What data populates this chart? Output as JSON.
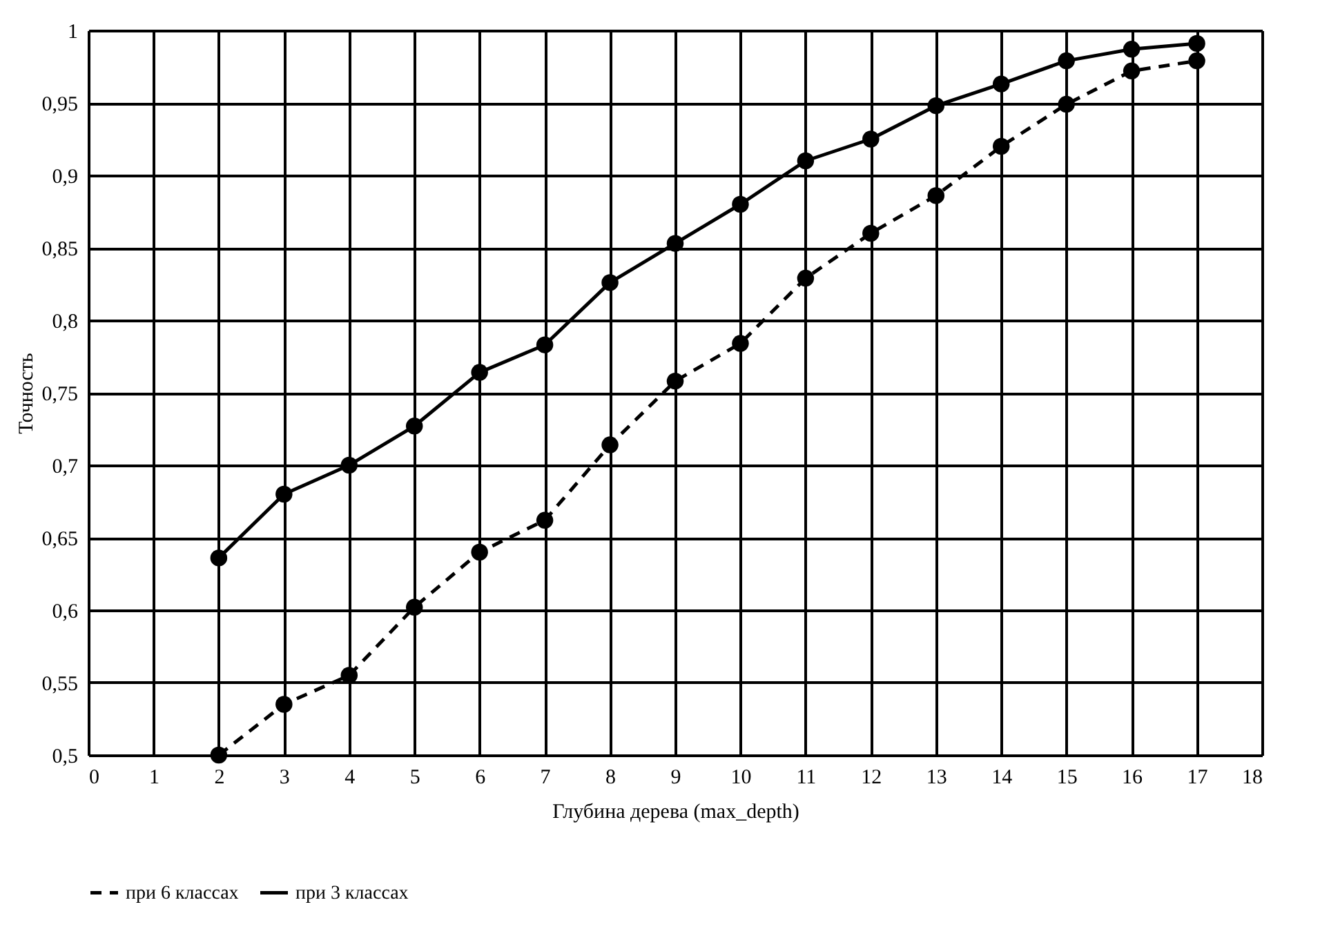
{
  "chart_data": {
    "type": "line",
    "xlabel": "Глубина дерева (max_depth)",
    "ylabel": "Точность",
    "x": [
      2,
      3,
      4,
      5,
      6,
      7,
      8,
      9,
      10,
      11,
      12,
      13,
      14,
      15,
      16,
      17
    ],
    "series": [
      {
        "name": "при 6 классах",
        "color": "#000000",
        "line_style": "dashed",
        "values": [
          0.5,
          0.535,
          0.555,
          0.602,
          0.64,
          0.662,
          0.714,
          0.758,
          0.784,
          0.829,
          0.86,
          0.886,
          0.92,
          0.949,
          0.972,
          0.979
        ]
      },
      {
        "name": "при 3 классах",
        "color": "#000000",
        "line_style": "solid",
        "values": [
          0.636,
          0.68,
          0.7,
          0.727,
          0.764,
          0.783,
          0.826,
          0.853,
          0.88,
          0.91,
          0.925,
          0.948,
          0.963,
          0.979,
          0.987,
          0.991
        ]
      }
    ],
    "xlim": [
      0,
      18
    ],
    "xticks": [
      0,
      1,
      2,
      3,
      4,
      5,
      6,
      7,
      8,
      9,
      10,
      11,
      12,
      13,
      14,
      15,
      16,
      17,
      18
    ],
    "ylim": [
      0.5,
      1
    ],
    "yticks": [
      {
        "value": 0.5,
        "label": "0,5"
      },
      {
        "value": 0.55,
        "label": "0,55"
      },
      {
        "value": 0.6,
        "label": "0,6"
      },
      {
        "value": 0.65,
        "label": "0,65"
      },
      {
        "value": 0.7,
        "label": "0,7"
      },
      {
        "value": 0.75,
        "label": "0,75"
      },
      {
        "value": 0.8,
        "label": "0,8"
      },
      {
        "value": 0.85,
        "label": "0,85"
      },
      {
        "value": 0.9,
        "label": "0,9"
      },
      {
        "value": 0.95,
        "label": "0,95"
      },
      1
    ],
    "grid": true,
    "legend": "bottom",
    "marker": "circle"
  }
}
